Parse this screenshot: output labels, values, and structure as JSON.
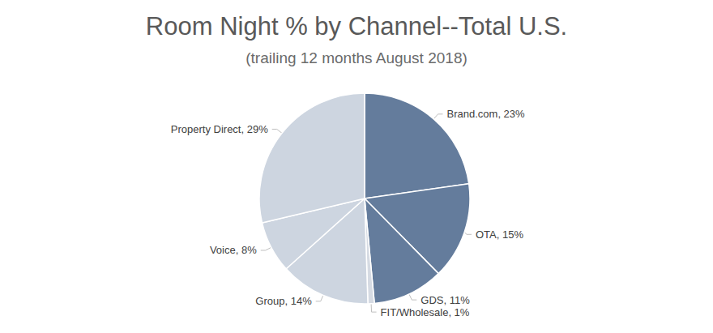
{
  "chart_data": {
    "type": "pie",
    "title": "Room Night % by Channel--Total U.S.",
    "subtitle": "(trailing 12 months August 2018)",
    "categories": [
      "Brand.com",
      "OTA",
      "GDS",
      "FIT/Wholesale",
      "Group",
      "Voice",
      "Property Direct"
    ],
    "values": [
      23,
      15,
      11,
      1,
      14,
      8,
      29
    ],
    "value_labels": [
      "Brand.com, 23%",
      "OTA, 15%",
      "GDS, 11%",
      "FIT/Wholesale, 1%",
      "Group, 14%",
      "Voice, 8%",
      "Property Direct, 29%"
    ],
    "colors": [
      "#647c9c",
      "#647c9c",
      "#647c9c",
      "#d6dbe3",
      "#cdd5e0",
      "#cdd5e0",
      "#cdd5e0"
    ],
    "data_labels": true
  }
}
